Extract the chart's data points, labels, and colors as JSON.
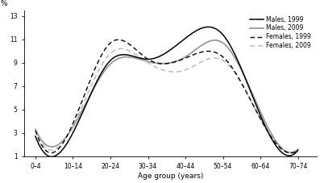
{
  "age_groups": [
    "0–4",
    "10–14",
    "20–24",
    "30–34",
    "40–44",
    "50–54",
    "60–64",
    "70–74"
  ],
  "x_positions": [
    0,
    1,
    2,
    3,
    4,
    5,
    6,
    7
  ],
  "males_1999": [
    2.7,
    3.0,
    9.2,
    9.3,
    11.1,
    11.4,
    4.5,
    1.5
  ],
  "males_2009": [
    3.3,
    3.5,
    8.9,
    9.1,
    9.5,
    10.7,
    4.8,
    1.6
  ],
  "females_1999": [
    3.2,
    3.8,
    10.7,
    9.3,
    9.4,
    9.5,
    4.2,
    1.5
  ],
  "females_2009": [
    3.3,
    3.6,
    9.8,
    9.0,
    8.4,
    9.2,
    4.2,
    1.5
  ],
  "yticks": [
    1,
    3,
    5,
    7,
    9,
    11,
    13
  ],
  "ylim": [
    1,
    13.5
  ],
  "xlim": [
    -0.3,
    7.5
  ],
  "ylabel": "%",
  "xlabel": "Age group (years)",
  "legend_labels": [
    "Males, 1999",
    "Males, 2009",
    "Females, 1999",
    "Females, 2009"
  ],
  "color_males_1999": "#000000",
  "color_males_2009": "#999999",
  "color_females_1999": "#000000",
  "color_females_2009": "#bbbbbb",
  "bg_color": "#ffffff",
  "lw_solid_black": 1.1,
  "lw_solid_gray": 1.3,
  "lw_dash_black": 1.0,
  "lw_dash_gray": 1.1
}
